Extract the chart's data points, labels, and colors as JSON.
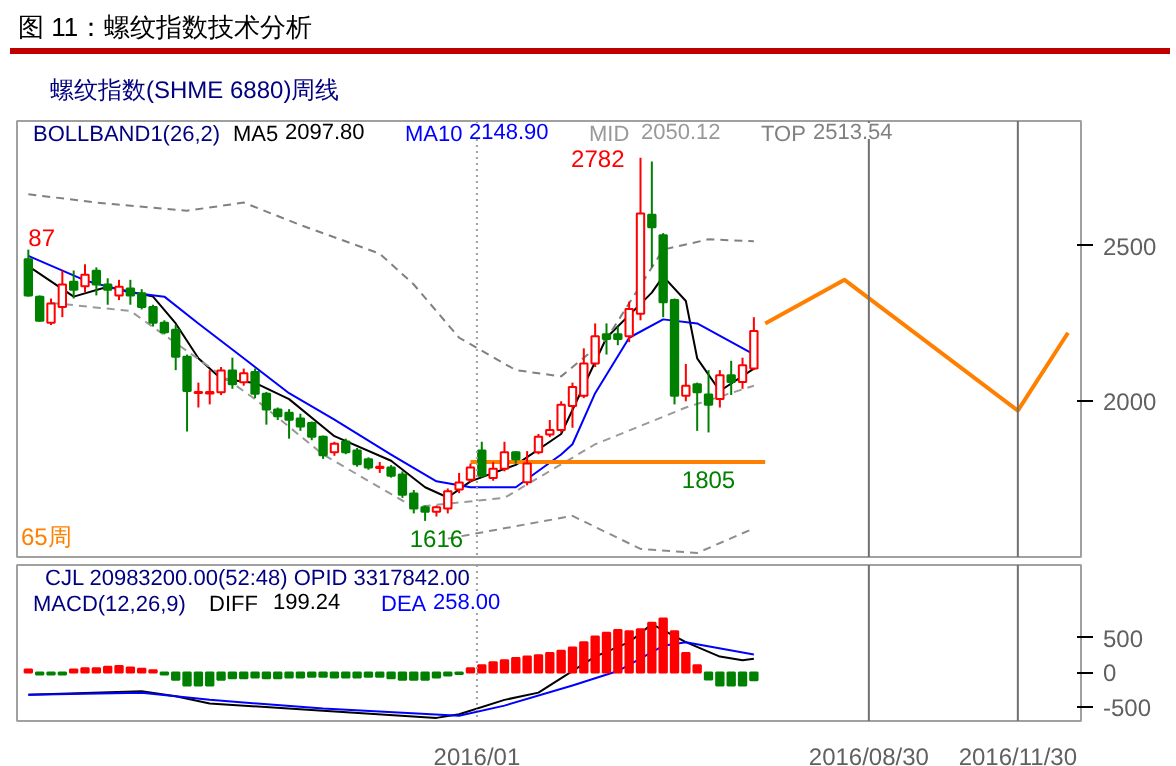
{
  "chart_data": [
    {
      "type": "candlestick",
      "title": "图 11：螺纹指数技术分析",
      "subtitle": "螺纹指数(SHME 6880)周线",
      "x": [
        "2015-03-30",
        "2015-04-06",
        "2015-04-13",
        "2015-04-20",
        "2015-04-27",
        "2015-05-04",
        "2015-05-11",
        "2015-05-18",
        "2015-05-25",
        "2015-06-01",
        "2015-06-08",
        "2015-06-15",
        "2015-06-22",
        "2015-06-29",
        "2015-07-06",
        "2015-07-13",
        "2015-07-20",
        "2015-07-27",
        "2015-08-03",
        "2015-08-10",
        "2015-08-17",
        "2015-08-24",
        "2015-08-31",
        "2015-09-07",
        "2015-09-14",
        "2015-09-21",
        "2015-09-28",
        "2015-10-05",
        "2015-10-12",
        "2015-10-19",
        "2015-10-26",
        "2015-11-02",
        "2015-11-09",
        "2015-11-16",
        "2015-11-23",
        "2015-11-30",
        "2015-12-07",
        "2015-12-14",
        "2015-12-21",
        "2015-12-28",
        "2016-01-04",
        "2016-01-11",
        "2016-01-18",
        "2016-01-25",
        "2016-02-01",
        "2016-02-08",
        "2016-02-15",
        "2016-02-22",
        "2016-02-29",
        "2016-03-07",
        "2016-03-14",
        "2016-03-21",
        "2016-03-28",
        "2016-04-04",
        "2016-04-11",
        "2016-04-18",
        "2016-04-25",
        "2016-05-02",
        "2016-05-09",
        "2016-05-16",
        "2016-05-23",
        "2016-05-30",
        "2016-06-06",
        "2016-06-13",
        "2016-06-20"
      ],
      "ohlc": [
        [
          2456,
          2487,
          2336,
          2340
        ],
        [
          2336,
          2340,
          2255,
          2259
        ],
        [
          2252,
          2330,
          2245,
          2314
        ],
        [
          2303,
          2420,
          2270,
          2375
        ],
        [
          2384,
          2420,
          2330,
          2358
        ],
        [
          2369,
          2440,
          2350,
          2406
        ],
        [
          2419,
          2430,
          2340,
          2375
        ],
        [
          2375,
          2395,
          2310,
          2358
        ],
        [
          2340,
          2390,
          2325,
          2368
        ],
        [
          2362,
          2390,
          2310,
          2340
        ],
        [
          2347,
          2360,
          2295,
          2303
        ],
        [
          2303,
          2310,
          2240,
          2252
        ],
        [
          2252,
          2260,
          2215,
          2222
        ],
        [
          2230,
          2245,
          2100,
          2143
        ],
        [
          2143,
          2150,
          1903,
          2033
        ],
        [
          2027,
          2060,
          1980,
          2030
        ],
        [
          2025,
          2100,
          1990,
          2030
        ],
        [
          2029,
          2110,
          2020,
          2099
        ],
        [
          2099,
          2140,
          2040,
          2055
        ],
        [
          2061,
          2105,
          2050,
          2090
        ],
        [
          2094,
          2105,
          2010,
          2024
        ],
        [
          2024,
          2030,
          1925,
          1974
        ],
        [
          1974,
          1980,
          1940,
          1952
        ],
        [
          1963,
          1975,
          1880,
          1941
        ],
        [
          1945,
          1960,
          1905,
          1919
        ],
        [
          1930,
          1935,
          1875,
          1886
        ],
        [
          1886,
          1890,
          1815,
          1827
        ],
        [
          1836,
          1870,
          1825,
          1864
        ],
        [
          1871,
          1880,
          1830,
          1836
        ],
        [
          1842,
          1850,
          1790,
          1798
        ],
        [
          1814,
          1820,
          1780,
          1787
        ],
        [
          1786,
          1805,
          1770,
          1790
        ],
        [
          1787,
          1795,
          1755,
          1761
        ],
        [
          1765,
          1775,
          1690,
          1700
        ],
        [
          1704,
          1715,
          1640,
          1656
        ],
        [
          1660,
          1665,
          1616,
          1645
        ],
        [
          1645,
          1665,
          1630,
          1660
        ],
        [
          1656,
          1720,
          1640,
          1711
        ],
        [
          1717,
          1770,
          1705,
          1739
        ],
        [
          1748,
          1800,
          1740,
          1787
        ],
        [
          1842,
          1870,
          1755,
          1761
        ],
        [
          1754,
          1805,
          1745,
          1783
        ],
        [
          1783,
          1870,
          1775,
          1836
        ],
        [
          1836,
          1840,
          1800,
          1814
        ],
        [
          1740,
          1840,
          1730,
          1800
        ],
        [
          1836,
          1895,
          1830,
          1886
        ],
        [
          1893,
          1940,
          1885,
          1908
        ],
        [
          1908,
          2000,
          1900,
          1989
        ],
        [
          1985,
          2060,
          1915,
          2046
        ],
        [
          2018,
          2170,
          2010,
          2121
        ],
        [
          2121,
          2250,
          2110,
          2209
        ],
        [
          2215,
          2250,
          2150,
          2200
        ],
        [
          2215,
          2240,
          2180,
          2200
        ],
        [
          2209,
          2320,
          2190,
          2296
        ],
        [
          2281,
          2782,
          2260,
          2603
        ],
        [
          2599,
          2770,
          2430,
          2559
        ],
        [
          2533,
          2540,
          2270,
          2318
        ],
        [
          2325,
          2330,
          1990,
          2018
        ],
        [
          2018,
          2120,
          2000,
          2050
        ],
        [
          2055,
          2060,
          1905,
          2029
        ],
        [
          2022,
          2100,
          1900,
          1989
        ],
        [
          2007,
          2100,
          1980,
          2084
        ],
        [
          2084,
          2130,
          2020,
          2062
        ],
        [
          2062,
          2140,
          2040,
          2116
        ],
        [
          2105,
          2270,
          2100,
          2226
        ]
      ],
      "colors": [
        "#008000",
        "#008000",
        "#ff0000",
        "#ff0000",
        "#008000",
        "#ff0000",
        "#008000",
        "#008000",
        "#ff0000",
        "#008000",
        "#008000",
        "#008000",
        "#008000",
        "#008000",
        "#008000",
        "#ff0000",
        "#ff0000",
        "#ff0000",
        "#008000",
        "#ff0000",
        "#008000",
        "#008000",
        "#008000",
        "#008000",
        "#008000",
        "#008000",
        "#008000",
        "#ff0000",
        "#008000",
        "#008000",
        "#008000",
        "#ff0000",
        "#008000",
        "#008000",
        "#008000",
        "#008000",
        "#ff0000",
        "#ff0000",
        "#ff0000",
        "#ff0000",
        "#008000",
        "#ff0000",
        "#ff0000",
        "#008000",
        "#ff0000",
        "#ff0000",
        "#ff0000",
        "#ff0000",
        "#ff0000",
        "#ff0000",
        "#ff0000",
        "#008000",
        "#008000",
        "#ff0000",
        "#ff0000",
        "#008000",
        "#008000",
        "#008000",
        "#ff0000",
        "#008000",
        "#008000",
        "#ff0000",
        "#008000",
        "#ff0000",
        "#ff0000"
      ],
      "xlim": [
        "2015-03-23",
        "2017-01-08"
      ],
      "ylim": [
        1500,
        2900
      ],
      "yticks": [
        2000,
        2500
      ],
      "tick_labels": "y",
      "series": [
        {
          "type": "line",
          "name": "MA5",
          "color": "#000000",
          "x": [
            "2015-03-30",
            "2015-04-27",
            "2015-05-18",
            "2015-06-15",
            "2015-06-29",
            "2015-07-13",
            "2015-07-27",
            "2015-08-17",
            "2015-09-07",
            "2015-10-05",
            "2015-11-09",
            "2015-11-30",
            "2015-12-14",
            "2015-12-28",
            "2016-01-25",
            "2016-02-22",
            "2016-03-21",
            "2016-04-18",
            "2016-04-25",
            "2016-05-09",
            "2016-05-16",
            "2016-05-30",
            "2016-06-20"
          ],
          "values": [
            2434,
            2336,
            2368,
            2336,
            2250,
            2138,
            2072,
            2059,
            2007,
            1888,
            1809,
            1724,
            1691,
            1743,
            1796,
            1895,
            2204,
            2349,
            2401,
            2322,
            2138,
            2033,
            2105
          ]
        },
        {
          "type": "line",
          "name": "MA10",
          "color": "#0000ff",
          "x": [
            "2015-03-30",
            "2015-05-04",
            "2015-06-01",
            "2015-06-22",
            "2015-07-13",
            "2015-08-10",
            "2015-09-07",
            "2015-10-05",
            "2015-11-09",
            "2015-12-07",
            "2015-12-28",
            "2016-01-25",
            "2016-02-22",
            "2016-02-29",
            "2016-03-14",
            "2016-04-04",
            "2016-04-25",
            "2016-05-16",
            "2016-06-20"
          ],
          "values": [
            2467,
            2388,
            2349,
            2336,
            2250,
            2138,
            2026,
            1941,
            1829,
            1743,
            1724,
            1724,
            1829,
            1862,
            2026,
            2204,
            2263,
            2250,
            2151
          ]
        },
        {
          "type": "line",
          "name": "MID",
          "color": "#999999",
          "line_style": "dashed",
          "x": [
            "2015-04-13",
            "2015-06-01",
            "2015-08-17",
            "2015-09-28",
            "2015-11-23",
            "2016-01-18",
            "2016-03-14",
            "2016-05-09",
            "2016-06-20"
          ],
          "values": [
            2316,
            2290,
            2007,
            1829,
            1660,
            1690,
            1862,
            1980,
            2050
          ]
        },
        {
          "type": "line",
          "name": "TOP",
          "color": "#808080",
          "line_style": "dashed",
          "x": [
            "2015-03-30",
            "2015-05-11",
            "2015-07-06",
            "2015-08-10",
            "2015-09-14",
            "2015-11-02",
            "2015-11-23",
            "2015-12-21",
            "2016-01-25",
            "2016-02-22",
            "2016-03-21",
            "2016-04-25",
            "2016-05-23",
            "2016-06-20"
          ],
          "values": [
            2665,
            2638,
            2612,
            2638,
            2566,
            2474,
            2375,
            2204,
            2100,
            2080,
            2200,
            2487,
            2520,
            2514
          ]
        },
        {
          "type": "line",
          "color": "#8c8c8c",
          "line_style": "dashed",
          "x": [
            "2015-12-14",
            "2016-02-29",
            "2016-04-11",
            "2016-05-16",
            "2016-06-20"
          ],
          "values": [
            1559,
            1632,
            1526,
            1513,
            1592
          ]
        },
        {
          "type": "line",
          "color": "#ff8000",
          "x": [
            "2015-12-28",
            "2016-06-27"
          ],
          "values": [
            1805,
            1805
          ]
        },
        {
          "type": "line",
          "color": "#ff8000",
          "x": [
            "2016-06-27",
            "2016-08-15",
            "2016-11-30",
            "2016-12-31"
          ],
          "values": [
            2250,
            2390,
            1970,
            2220
          ]
        }
      ],
      "ref_lines": [
        {
          "axis": "x",
          "value": "2016-01-01",
          "label": null,
          "color": "#a0a0a0",
          "line_style": "dotted"
        },
        {
          "axis": "x",
          "value": "2016-08-30",
          "label": null,
          "color": "#707070"
        },
        {
          "axis": "x",
          "value": "2016-11-30",
          "label": null,
          "color": "#707070"
        }
      ],
      "annotations": [
        "65周",
        "BOLLBAND1(26,2)",
        "2097.80",
        "2148.90",
        "2050.12",
        "2513.54",
        {
          "text": "87",
          "x": "2015-03-30",
          "y": 2487
        },
        {
          "text": "2782",
          "x": "2016-04-11",
          "y": 2782
        },
        {
          "text": "1616",
          "x": "2015-12-07",
          "y": 1616
        },
        {
          "text": "1805",
          "x": "2016-05-23",
          "y": 1805
        }
      ]
    },
    {
      "type": "bar",
      "x": [
        "2015-03-30",
        "2015-04-06",
        "2015-04-13",
        "2015-04-20",
        "2015-04-27",
        "2015-05-04",
        "2015-05-11",
        "2015-05-18",
        "2015-05-25",
        "2015-06-01",
        "2015-06-08",
        "2015-06-15",
        "2015-06-22",
        "2015-06-29",
        "2015-07-06",
        "2015-07-13",
        "2015-07-20",
        "2015-07-27",
        "2015-08-03",
        "2015-08-10",
        "2015-08-17",
        "2015-08-24",
        "2015-08-31",
        "2015-09-07",
        "2015-09-14",
        "2015-09-21",
        "2015-09-28",
        "2015-10-05",
        "2015-10-12",
        "2015-10-19",
        "2015-10-26",
        "2015-11-02",
        "2015-11-09",
        "2015-11-16",
        "2015-11-23",
        "2015-11-30",
        "2015-12-07",
        "2015-12-14",
        "2015-12-21",
        "2015-12-28",
        "2016-01-04",
        "2016-01-11",
        "2016-01-18",
        "2016-01-25",
        "2016-02-01",
        "2016-02-08",
        "2016-02-15",
        "2016-02-22",
        "2016-02-29",
        "2016-03-07",
        "2016-03-14",
        "2016-03-21",
        "2016-03-28",
        "2016-04-04",
        "2016-04-11",
        "2016-04-18",
        "2016-04-25",
        "2016-05-02",
        "2016-05-09",
        "2016-05-16",
        "2016-05-23",
        "2016-05-30",
        "2016-06-06",
        "2016-06-13",
        "2016-06-20"
      ],
      "values": [
        42,
        -31,
        -31,
        -31,
        42,
        62,
        62,
        83,
        94,
        73,
        52,
        31,
        -31,
        -104,
        -187,
        -187,
        -187,
        -104,
        -83,
        -83,
        -73,
        -83,
        -83,
        -73,
        -73,
        -62,
        -62,
        -73,
        -73,
        -73,
        -62,
        -62,
        -83,
        -104,
        -104,
        -104,
        -73,
        -42,
        -21,
        60,
        104,
        146,
        177,
        208,
        229,
        250,
        281,
        312,
        360,
        437,
        520,
        572,
        614,
        593,
        624,
        718,
        780,
        593,
        281,
        104,
        -100,
        -187,
        -187,
        -187,
        -114
      ],
      "colors": [
        "#ff0000",
        "#008000",
        "#008000",
        "#008000",
        "#ff0000",
        "#ff0000",
        "#ff0000",
        "#ff0000",
        "#ff0000",
        "#ff0000",
        "#ff0000",
        "#ff0000",
        "#008000",
        "#008000",
        "#008000",
        "#008000",
        "#008000",
        "#008000",
        "#008000",
        "#008000",
        "#008000",
        "#008000",
        "#008000",
        "#008000",
        "#008000",
        "#008000",
        "#008000",
        "#008000",
        "#008000",
        "#008000",
        "#008000",
        "#008000",
        "#008000",
        "#008000",
        "#008000",
        "#008000",
        "#008000",
        "#008000",
        "#008000",
        "#ff0000",
        "#ff0000",
        "#ff0000",
        "#ff0000",
        "#ff0000",
        "#ff0000",
        "#ff0000",
        "#ff0000",
        "#ff0000",
        "#ff0000",
        "#ff0000",
        "#ff0000",
        "#ff0000",
        "#ff0000",
        "#ff0000",
        "#ff0000",
        "#ff0000",
        "#ff0000",
        "#ff0000",
        "#ff0000",
        "#ff0000",
        "#008000",
        "#008000",
        "#008000",
        "#008000",
        "#008000"
      ],
      "xlim": [
        "2015-03-23",
        "2017-01-08"
      ],
      "ylim": [
        -700,
        1550
      ],
      "yticks": [
        -500,
        0,
        500
      ],
      "xticks": [
        {
          "value": "2016-01-01",
          "label": "2016/01"
        },
        {
          "value": "2016-08-30",
          "label": "2016/08/30"
        },
        {
          "value": "2016-11-30",
          "label": "2016/11/30"
        }
      ],
      "series": [
        {
          "type": "line",
          "name": "DIFF",
          "color": "#000000",
          "x": [
            "2015-03-30",
            "2015-06-08",
            "2015-06-29",
            "2015-07-20",
            "2015-09-28",
            "2015-12-07",
            "2015-12-21",
            "2016-01-18",
            "2016-02-08",
            "2016-03-14",
            "2016-04-04",
            "2016-04-18",
            "2016-05-09",
            "2016-05-30",
            "2016-06-13",
            "2016-06-20"
          ],
          "values": [
            -322,
            -270,
            -343,
            -447,
            -551,
            -655,
            -603,
            -395,
            -291,
            229,
            437,
            697,
            437,
            229,
            177,
            199
          ]
        },
        {
          "type": "line",
          "name": "DEA",
          "color": "#0000ff",
          "x": [
            "2015-03-30",
            "2015-06-08",
            "2015-07-20",
            "2015-09-28",
            "2015-12-21",
            "2016-01-18",
            "2016-02-29",
            "2016-03-28",
            "2016-04-25",
            "2016-05-09",
            "2016-06-20"
          ],
          "values": [
            -322,
            -291,
            -395,
            -520,
            -624,
            -478,
            -187,
            21,
            385,
            437,
            258
          ]
        }
      ],
      "ref_lines": [
        {
          "axis": "x",
          "value": "2016-01-01",
          "label": null,
          "color": "#a0a0a0",
          "line_style": "dotted"
        },
        {
          "axis": "x",
          "value": "2016-08-30",
          "label": null,
          "color": "#707070"
        },
        {
          "axis": "x",
          "value": "2016-11-30",
          "label": null,
          "color": "#707070"
        }
      ],
      "annotations": [
        "CJL  20983200.00(52:48)    OPID  3317842.00",
        "MACD(12,26,9)",
        "199.24",
        "258.00"
      ]
    }
  ]
}
